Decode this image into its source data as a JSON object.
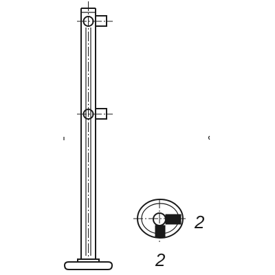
{
  "drawing": {
    "labels": {
      "side_dimension": "2",
      "bottom_dimension": "2"
    }
  }
}
